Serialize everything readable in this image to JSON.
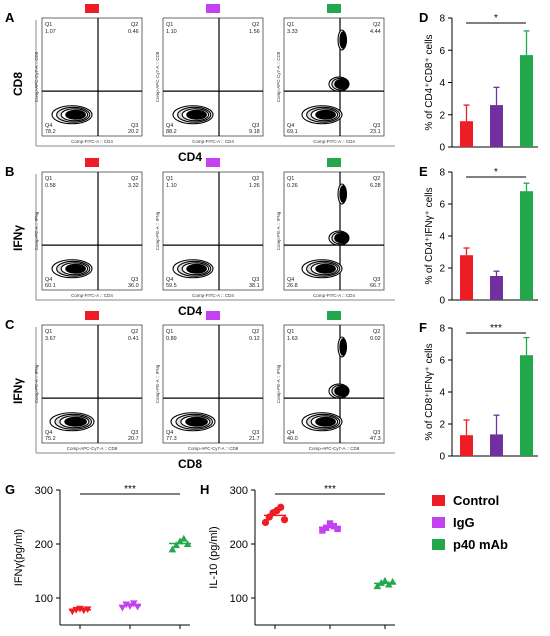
{
  "colors": {
    "control": "#ee1c25",
    "igg": "#c341f0",
    "p40": "#22a84a",
    "igg_bar": "#7030a0",
    "contour": "#000000"
  },
  "flow": {
    "A": {
      "panel": "A",
      "ylabel": "CD8",
      "xlabel": "CD4",
      "plots": [
        {
          "q1": "1.07",
          "q2": "0.46",
          "q4": "78.2",
          "q3": "20.2",
          "xaxis": "Comp-FITC-A :: CD4",
          "yaxis": "Comp-APC-Cy7-A :: CD8",
          "group": "control"
        },
        {
          "q1": "1.10",
          "q2": "1.56",
          "q4": "88.2",
          "q3": "9.18",
          "xaxis": "Comp-FITC-A :: CD4",
          "yaxis": "Comp-APC-Cy7-A :: CD8",
          "group": "igg"
        },
        {
          "q1": "3.33",
          "q2": "4.44",
          "q4": "69.1",
          "q3": "23.1",
          "xaxis": "Comp-FITC-A :: CD4",
          "yaxis": "Comp-APC-Cy7-A :: CD8",
          "group": "p40"
        }
      ]
    },
    "B": {
      "panel": "B",
      "ylabel": "IFNγ",
      "xlabel": "CD4",
      "plots": [
        {
          "q1": "0.58",
          "q2": "3.32",
          "q4": "60.1",
          "q3": "36.0",
          "xaxis": "Comp-FITC-A :: CD4",
          "yaxis": "Comp-PE-A :: IFNg",
          "group": "control"
        },
        {
          "q1": "1.10",
          "q2": "1.26",
          "q4": "59.5",
          "q3": "38.1",
          "xaxis": "Comp-FITC-A :: CD4",
          "yaxis": "Comp-PE-A :: IFNg",
          "group": "igg"
        },
        {
          "q1": "0.26",
          "q2": "6.28",
          "q4": "26.8",
          "q3": "66.7",
          "xaxis": "Comp-FITC-A :: CD4",
          "yaxis": "Comp-PE-A :: IFNg",
          "group": "p40"
        }
      ]
    },
    "C": {
      "panel": "C",
      "ylabel": "IFNγ",
      "xlabel": "CD8",
      "plots": [
        {
          "q1": "3.67",
          "q2": "0.41",
          "q4": "75.2",
          "q3": "20.7",
          "xaxis": "Comp-APC-Cy7-A :: CD8",
          "yaxis": "Comp-PE-A :: IFNg",
          "group": "control",
          "q1label": "Q1",
          "q2label": "Q2"
        },
        {
          "q1": "0.89",
          "q2": "0.12",
          "q4": "77.3",
          "q3": "21.7",
          "xaxis": "Comp-APC-Cy7-A :: CD8",
          "yaxis": "Comp-PE-A :: IFNg",
          "group": "igg",
          "q1label": "Q1",
          "q2label": "Q2"
        },
        {
          "q1": "1.63",
          "q2": "0.02",
          "q4": "40.0",
          "q3": "47.3",
          "xaxis": "Comp-APC-Cy7-A :: CD8",
          "yaxis": "Comp-PE-A :: IFNg",
          "group": "p40",
          "q1label": "Q1",
          "q2label": "Q2"
        }
      ]
    }
  },
  "chart_data": [
    {
      "panel": "D",
      "type": "bar",
      "categories": [
        "Control",
        "IgG",
        "p40 mAb"
      ],
      "values": [
        1.6,
        2.6,
        5.7
      ],
      "errors": [
        1.0,
        1.1,
        1.5
      ],
      "ylabel": "% of CD4⁺CD8⁺ cells",
      "ylim": [
        0,
        8
      ],
      "yticks": [
        0,
        2,
        4,
        6,
        8
      ],
      "significance": "*"
    },
    {
      "panel": "E",
      "type": "bar",
      "categories": [
        "Control",
        "IgG",
        "p40 mAb"
      ],
      "values": [
        2.8,
        1.5,
        6.8
      ],
      "errors": [
        0.45,
        0.3,
        0.5
      ],
      "ylabel": "% of CD4⁺IFNγ⁺ cells",
      "ylim": [
        0,
        8
      ],
      "yticks": [
        0,
        2,
        4,
        6,
        8
      ],
      "significance": "*"
    },
    {
      "panel": "F",
      "type": "bar",
      "categories": [
        "Control",
        "IgG",
        "p40 mAb"
      ],
      "values": [
        1.3,
        1.35,
        6.3
      ],
      "errors": [
        0.95,
        1.2,
        1.1
      ],
      "ylabel": "% of CD8⁺IFNγ⁺ cells",
      "ylim": [
        0,
        8
      ],
      "yticks": [
        0,
        2,
        4,
        6,
        8
      ],
      "significance": "***"
    },
    {
      "panel": "G",
      "type": "scatter",
      "categories": [
        "Control",
        "IgG",
        "p40 mAb"
      ],
      "points": [
        [
          75,
          78,
          80,
          77,
          79
        ],
        [
          82,
          88,
          85,
          90,
          84
        ],
        [
          190,
          198,
          205,
          210,
          200
        ]
      ],
      "means": [
        78,
        86,
        201
      ],
      "ylabel": "IFNγ(pg/ml)",
      "ylim": [
        50,
        300
      ],
      "yticks": [
        100,
        200,
        300
      ],
      "significance": "***"
    },
    {
      "panel": "H",
      "type": "scatter",
      "categories": [
        "Control",
        "IgG",
        "p40 mAb"
      ],
      "points": [
        [
          240,
          250,
          258,
          262,
          268,
          245
        ],
        [
          225,
          230,
          238,
          233,
          228
        ],
        [
          122,
          128,
          132,
          125,
          130
        ]
      ],
      "means": [
        253,
        231,
        127
      ],
      "ylabel": "IL-10 (pg/ml)",
      "ylim": [
        50,
        300
      ],
      "yticks": [
        100,
        200,
        300
      ],
      "significance": "***"
    }
  ],
  "legend": [
    {
      "label": "Control",
      "color": "#ee1c25"
    },
    {
      "label": "IgG",
      "color": "#c341f0"
    },
    {
      "label": "p40 mAb",
      "color": "#22a84a"
    }
  ]
}
